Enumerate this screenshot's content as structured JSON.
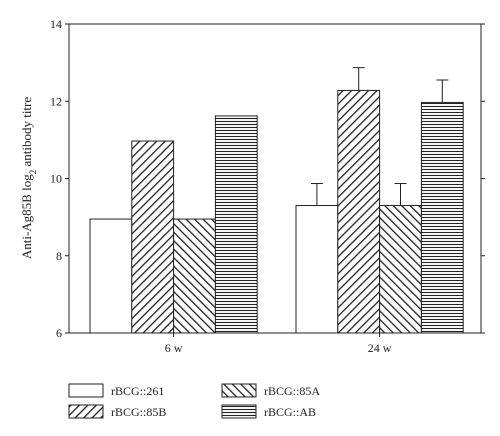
{
  "chart_data": {
    "type": "bar",
    "title": "",
    "xlabel": "",
    "ylabel": "Anti-Ag85B log",
    "ylabel_subscript": "2",
    "ylabel_suffix": " antibody titre",
    "ylim": [
      6,
      14
    ],
    "yticks": [
      6,
      8,
      10,
      12,
      14
    ],
    "grid": false,
    "legend_position": "bottom",
    "categories": [
      "6 w",
      "24 w"
    ],
    "series": [
      {
        "name": "rBCG::261",
        "pattern": "open",
        "values": [
          8.95,
          9.3
        ],
        "error_top": [
          null,
          9.87
        ]
      },
      {
        "name": "rBCG::85B",
        "pattern": "diagonal-up",
        "values": [
          10.97,
          12.28
        ],
        "error_top": [
          null,
          12.87
        ]
      },
      {
        "name": "rBCG::85A",
        "pattern": "diagonal-down",
        "values": [
          8.95,
          9.3
        ],
        "error_top": [
          null,
          9.87
        ]
      },
      {
        "name": "rBCG::AB",
        "pattern": "horizontal",
        "values": [
          11.62,
          11.97
        ],
        "error_top": [
          null,
          12.55
        ]
      }
    ],
    "colors": {
      "stroke": "#222222",
      "fill": "#ffffff"
    }
  }
}
